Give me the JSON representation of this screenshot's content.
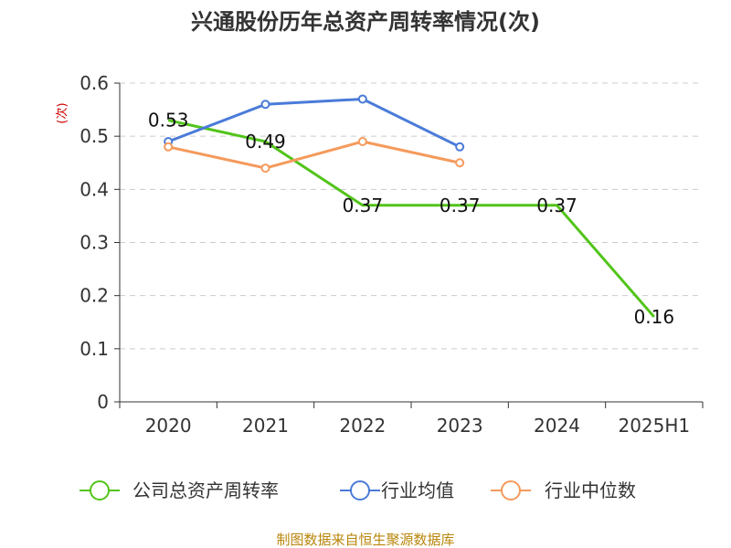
{
  "chart_data": {
    "type": "line",
    "title": "兴通股份历年总资产周转率情况(次)",
    "ylabel": "(次)",
    "xlabel": "",
    "categories": [
      "2020",
      "2021",
      "2022",
      "2023",
      "2024",
      "2025H1"
    ],
    "ylim": [
      0,
      0.6
    ],
    "yticks": [
      "0",
      "0.1",
      "0.2",
      "0.3",
      "0.4",
      "0.5",
      "0.6"
    ],
    "grid": true,
    "legend_position": "bottom",
    "series": [
      {
        "name": "公司总资产周转率",
        "color": "#52c41a",
        "values": [
          0.53,
          0.49,
          0.37,
          0.37,
          0.37,
          0.16
        ],
        "labels": [
          "0.53",
          "0.49",
          "0.37",
          "0.37",
          "0.37",
          "0.16"
        ],
        "show_labels": true,
        "show_markers": false
      },
      {
        "name": "行业均值",
        "color": "#4a7bd8",
        "values": [
          0.49,
          0.56,
          0.57,
          0.48,
          null,
          null
        ],
        "show_labels": false,
        "show_markers": true
      },
      {
        "name": "行业中位数",
        "color": "#f59a5c",
        "values": [
          0.48,
          0.44,
          0.49,
          0.45,
          null,
          null
        ],
        "show_labels": false,
        "show_markers": true
      }
    ],
    "source": "制图数据来自恒生聚源数据库"
  }
}
